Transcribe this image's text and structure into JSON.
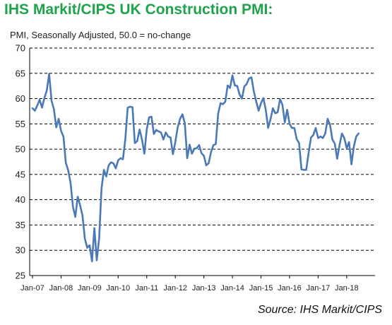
{
  "title": "IHS Markit/CIPS UK Construction PMI:",
  "subtitle": "PMI, Seasonally Adjusted, 50.0 = no-change",
  "source": "Source: IHS Markit/CIPS",
  "colors": {
    "title": "#1fa34a",
    "line": "#4a79b8",
    "grid": "#000000"
  },
  "chart_data": {
    "type": "line",
    "title": "IHS Markit/CIPS UK Construction PMI:",
    "subtitle": "PMI, Seasonally Adjusted, 50.0 = no-change",
    "ylim": [
      25,
      70
    ],
    "yticks": [
      25,
      30,
      35,
      40,
      45,
      50,
      55,
      60,
      65,
      70
    ],
    "grid": "horizontal dashed",
    "x_tick_labels": [
      "Jan-07",
      "Jan-08",
      "Jan-09",
      "Jan-10",
      "Jan-11",
      "Jan-12",
      "Jan-13",
      "Jan-14",
      "Jan-15",
      "Jan-16",
      "Jan-17",
      "Jan-18"
    ],
    "x_start": "2007-01",
    "x_end": "2018-04",
    "series": [
      {
        "values": [
          58.1,
          57.6,
          58.6,
          59.8,
          58.2,
          60.1,
          61.6,
          64.9,
          59.6,
          57.9,
          54.3,
          56.0,
          53.6,
          52.5,
          47.3,
          45.8,
          43.3,
          38.6,
          36.6,
          40.6,
          38.9,
          36.9,
          32.3,
          30.5,
          31.0,
          27.8,
          34.4,
          28.0,
          32.3,
          42.2,
          45.9,
          44.6,
          46.8,
          47.4,
          47.2,
          46.2,
          47.8,
          48.2,
          48.0,
          52.0,
          58.2,
          58.4,
          58.3,
          51.2,
          51.6,
          53.9,
          51.9,
          49.1,
          53.9,
          56.3,
          56.4,
          53.0,
          53.8,
          53.5,
          53.3,
          51.9,
          53.3,
          52.5,
          52.3,
          49.0,
          51.4,
          54.3,
          56.0,
          56.9,
          55.1,
          48.2,
          50.9,
          49.1,
          50.1,
          50.2,
          50.8,
          49.2,
          48.7,
          46.8,
          47.2,
          49.4,
          50.8,
          51.0,
          57.0,
          59.1,
          58.9,
          59.4,
          62.6,
          62.1,
          64.6,
          62.6,
          62.5,
          60.8,
          60.0,
          62.4,
          62.9,
          64.0,
          64.2,
          61.4,
          59.4,
          57.6,
          59.1,
          60.1,
          57.8,
          54.2,
          55.9,
          58.1,
          57.1,
          57.3,
          59.9,
          58.8,
          55.3,
          57.8,
          55.0,
          54.2,
          54.2,
          52.0,
          51.2,
          46.0,
          45.9,
          45.9,
          49.2,
          52.3,
          52.8,
          54.2,
          52.2,
          52.5,
          52.2,
          53.1,
          56.0,
          54.8,
          51.9,
          51.1,
          48.1,
          50.8,
          53.1,
          52.2,
          50.2,
          51.4,
          47.0,
          50.5,
          52.5,
          53.1
        ]
      }
    ]
  }
}
